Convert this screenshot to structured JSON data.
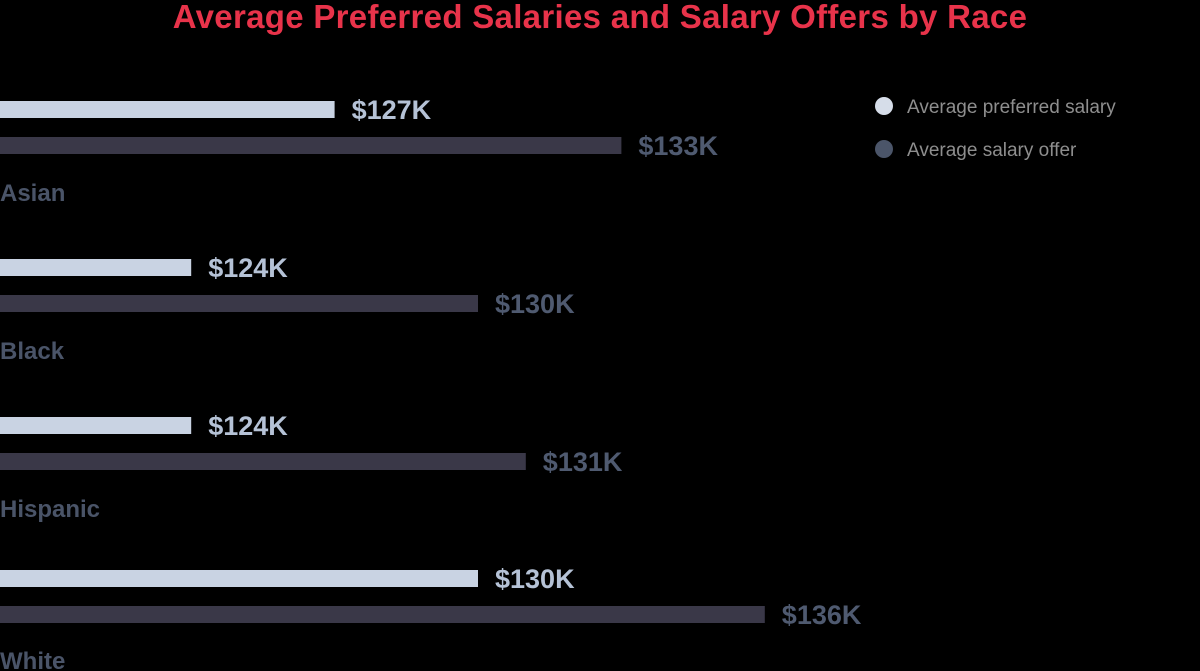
{
  "chart_data": {
    "type": "bar",
    "orientation": "horizontal",
    "title": "Average Preferred Salaries and Salary Offers by Race",
    "categories": [
      "Asian",
      "Black",
      "Hispanic",
      "White"
    ],
    "unit": "$K",
    "xlim": [
      120,
      145
    ],
    "grid": false,
    "legend_position": "top-right",
    "series": [
      {
        "name": "Average preferred salary",
        "color": "#c9d3e3",
        "label_color": "#b5c2d6",
        "values": [
          127,
          124,
          124,
          130
        ],
        "labels": [
          "$127K",
          "$124K",
          "$124K",
          "$130K"
        ]
      },
      {
        "name": "Average salary offer",
        "color": "#3a3848",
        "label_color": "#4f5a70",
        "values": [
          133,
          130,
          131,
          136
        ],
        "labels": [
          "$133K",
          "$130K",
          "$131K",
          "$136K"
        ]
      }
    ]
  }
}
